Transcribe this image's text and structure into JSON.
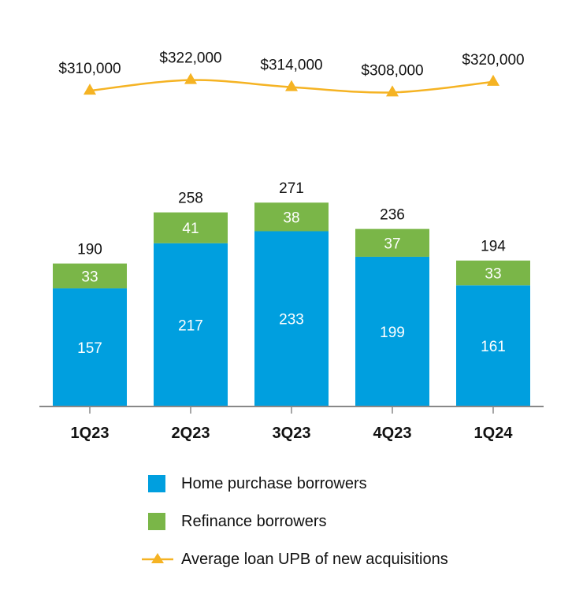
{
  "colors": {
    "home_purchase": "#009fdf",
    "refinance": "#7ab648",
    "avg_loan_line": "#f5b323",
    "axis": "#888888",
    "text": "#111111"
  },
  "chart_data": {
    "type": "bar",
    "stacked": true,
    "categories": [
      "1Q23",
      "2Q23",
      "3Q23",
      "4Q23",
      "1Q24"
    ],
    "series": [
      {
        "name": "Home purchase borrowers",
        "values": [
          157,
          217,
          233,
          199,
          161
        ]
      },
      {
        "name": "Refinance borrowers",
        "values": [
          33,
          41,
          38,
          37,
          33
        ]
      }
    ],
    "totals": [
      190,
      258,
      271,
      236,
      194
    ],
    "overlay_line": {
      "type": "line",
      "name": "Average loan UPB of new acquisitions",
      "values": [
        310000,
        322000,
        314000,
        308000,
        320000
      ],
      "labels": [
        "$310,000",
        "$322,000",
        "$314,000",
        "$308,000",
        "$320,000"
      ]
    },
    "title": "",
    "xlabel": "",
    "ylabel": "",
    "ylim": [
      0,
      300
    ],
    "grid": false,
    "legend_position": "bottom"
  },
  "legend": {
    "items": [
      {
        "label": "Home purchase borrowers"
      },
      {
        "label": "Refinance borrowers"
      },
      {
        "label": "Average loan UPB of new acquisitions"
      }
    ]
  }
}
